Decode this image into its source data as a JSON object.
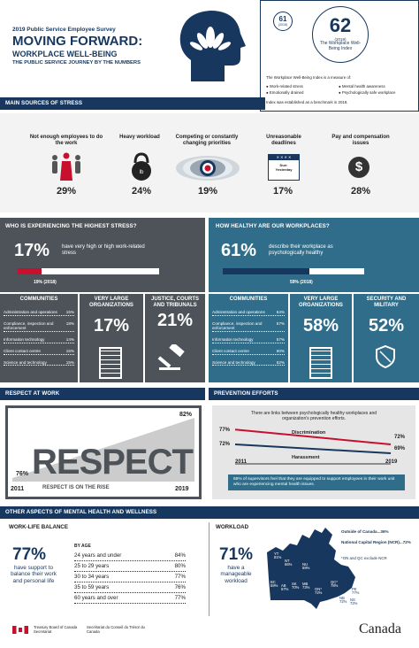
{
  "header": {
    "survey": "2019 Public Service Employee Survey",
    "title": "MOVING FORWARD:",
    "subtitle": "WORKPLACE WELL-BEING",
    "tagline": "THE PUBLIC SERVICE JOURNEY BY THE NUMBERS"
  },
  "index": {
    "prev_value": "61",
    "prev_year": "(2018)",
    "value": "62",
    "year": "(2019)",
    "name": "The Workplace Well-Being Index",
    "measure_intro": "The Workplace Well-Being Index is a measure of:",
    "measures": [
      "Work-related stress",
      "Mental health awareness",
      "Emotionally drained",
      "Psychologically safe workplace"
    ],
    "benchmark": "Index was established as a benchmark in 2018."
  },
  "stress_sources": {
    "heading": "MAIN SOURCES OF STRESS",
    "items": [
      {
        "label": "Not enough employees to do the work",
        "pct": "29%",
        "icon": "people-icon"
      },
      {
        "label": "Heavy workload",
        "pct": "24%",
        "icon": "kettlebell-icon"
      },
      {
        "label": "Competing or constantly changing priorities",
        "pct": "19%",
        "icon": "target-icon"
      },
      {
        "label": "Unreasonable deadlines",
        "pct": "17%",
        "icon": "calendar-icon"
      },
      {
        "label": "Pay and compensation issues",
        "pct": "28%",
        "icon": "dollar-icon"
      }
    ],
    "calendar_due": "Due: Yesterday"
  },
  "highest_stress": {
    "heading": "WHO IS EXPERIENCING THE HIGHEST STRESS?",
    "big": "17%",
    "desc": "have very high or high work-related stress",
    "prev": "19% (2018)",
    "communities_title": "COMMUNITIES",
    "communities": [
      [
        "Administration and operations",
        "15%"
      ],
      [
        "Compliance, inspection and enforcement",
        "18%"
      ],
      [
        "Information technology",
        "14%"
      ],
      [
        "Client contact centre",
        "15%"
      ],
      [
        "Science and technology",
        "15%"
      ]
    ],
    "large_title": "VERY LARGE ORGANIZATIONS",
    "large_pct": "17%",
    "justice_title": "JUSTICE, COURTS AND TRIBUNALS",
    "justice_pct": "21%"
  },
  "healthy": {
    "heading": "HOW HEALTHY ARE OUR WORKPLACES?",
    "big": "61%",
    "desc": "describe their workplace as psychologically healthy",
    "prev": "59% (2018)",
    "communities_title": "COMMUNITIES",
    "communities": [
      [
        "Adminstration and operations",
        "64%"
      ],
      [
        "Compliance, inspection and enforcement",
        "57%"
      ],
      [
        "Information technology",
        "57%"
      ],
      [
        "Client contact centre",
        "60%"
      ],
      [
        "Science and technology",
        "62%"
      ]
    ],
    "large_title": "VERY LARGE ORGANIZATIONS",
    "large_pct": "58%",
    "security_title": "SECURITY AND MILITARY",
    "security_pct": "52%"
  },
  "respect": {
    "heading": "RESPECT AT WORK",
    "word": "RESPECT",
    "start": "76%",
    "end": "82%",
    "y1": "2011",
    "y2": "2019",
    "caption": "RESPECT IS ON THE RISE"
  },
  "prevention": {
    "heading": "PREVENTION EFFORTS",
    "intro": "There are links between psychologically healthy workplaces and organization's prevention efforts.",
    "disc_label": "Discrimination",
    "harass_label": "Harassment",
    "y1": "2011",
    "y2": "2019",
    "disc_start": "77%",
    "disc_end": "72%",
    "harass_start": "72%",
    "harass_end": "69%",
    "note": "68% of supervisors feel that they are equipped to support employees in their work unit who are experiencing mental health issues."
  },
  "chart_data": {
    "type": "line",
    "x": [
      "2011",
      "2019"
    ],
    "series": [
      {
        "name": "Discrimination",
        "values": [
          77,
          72
        ]
      },
      {
        "name": "Harassment",
        "values": [
          72,
          69
        ]
      }
    ]
  },
  "other": {
    "heading": "OTHER ASPECTS OF MENTAL HEALTH AND WELLNESS"
  },
  "work_life": {
    "heading": "WORK-LIFE BALANCE",
    "big": "77%",
    "desc": "have support to balance their work and personal life",
    "age_title": "BY AGE",
    "ages": [
      [
        "24 years and under",
        "84%"
      ],
      [
        "25 to 29 years",
        "80%"
      ],
      [
        "30 to 34 years",
        "77%"
      ],
      [
        "35 to 59 years",
        "76%"
      ],
      [
        "60 years and over",
        "77%"
      ]
    ]
  },
  "workload": {
    "heading": "WORKLOAD",
    "big": "71%",
    "desc": "have a manageable workload",
    "outside": "Outside of Canada",
    "outside_pct": "...36%",
    "ncr": "National Capital Region (NCR)",
    "ncr_pct": "...72%",
    "note": "*ON and QC exclude NCR",
    "provinces": [
      {
        "code": "YT",
        "pct": "81%"
      },
      {
        "code": "NT",
        "pct": "66%"
      },
      {
        "code": "NU",
        "pct": "69%"
      },
      {
        "code": "BC",
        "pct": "69%"
      },
      {
        "code": "AB",
        "pct": "67%"
      },
      {
        "code": "SK",
        "pct": "70%"
      },
      {
        "code": "MB",
        "pct": "73%"
      },
      {
        "code": "ON*",
        "pct": "72%"
      },
      {
        "code": "QC*",
        "pct": "78%"
      },
      {
        "code": "NL",
        "pct": "75%"
      },
      {
        "code": "PE",
        "pct": "77%"
      },
      {
        "code": "NB",
        "pct": "72%"
      },
      {
        "code": "NS",
        "pct": "72%"
      }
    ]
  },
  "footer": {
    "en": "Treasury Board of Canada Secretariat",
    "fr": "Secrétariat du Conseil du Trésor du Canada",
    "wordmark": "Canada"
  },
  "colors": {
    "navy": "#17375e",
    "grey": "#4d5359",
    "red": "#c8102e",
    "teal": "#2f6d8a"
  }
}
